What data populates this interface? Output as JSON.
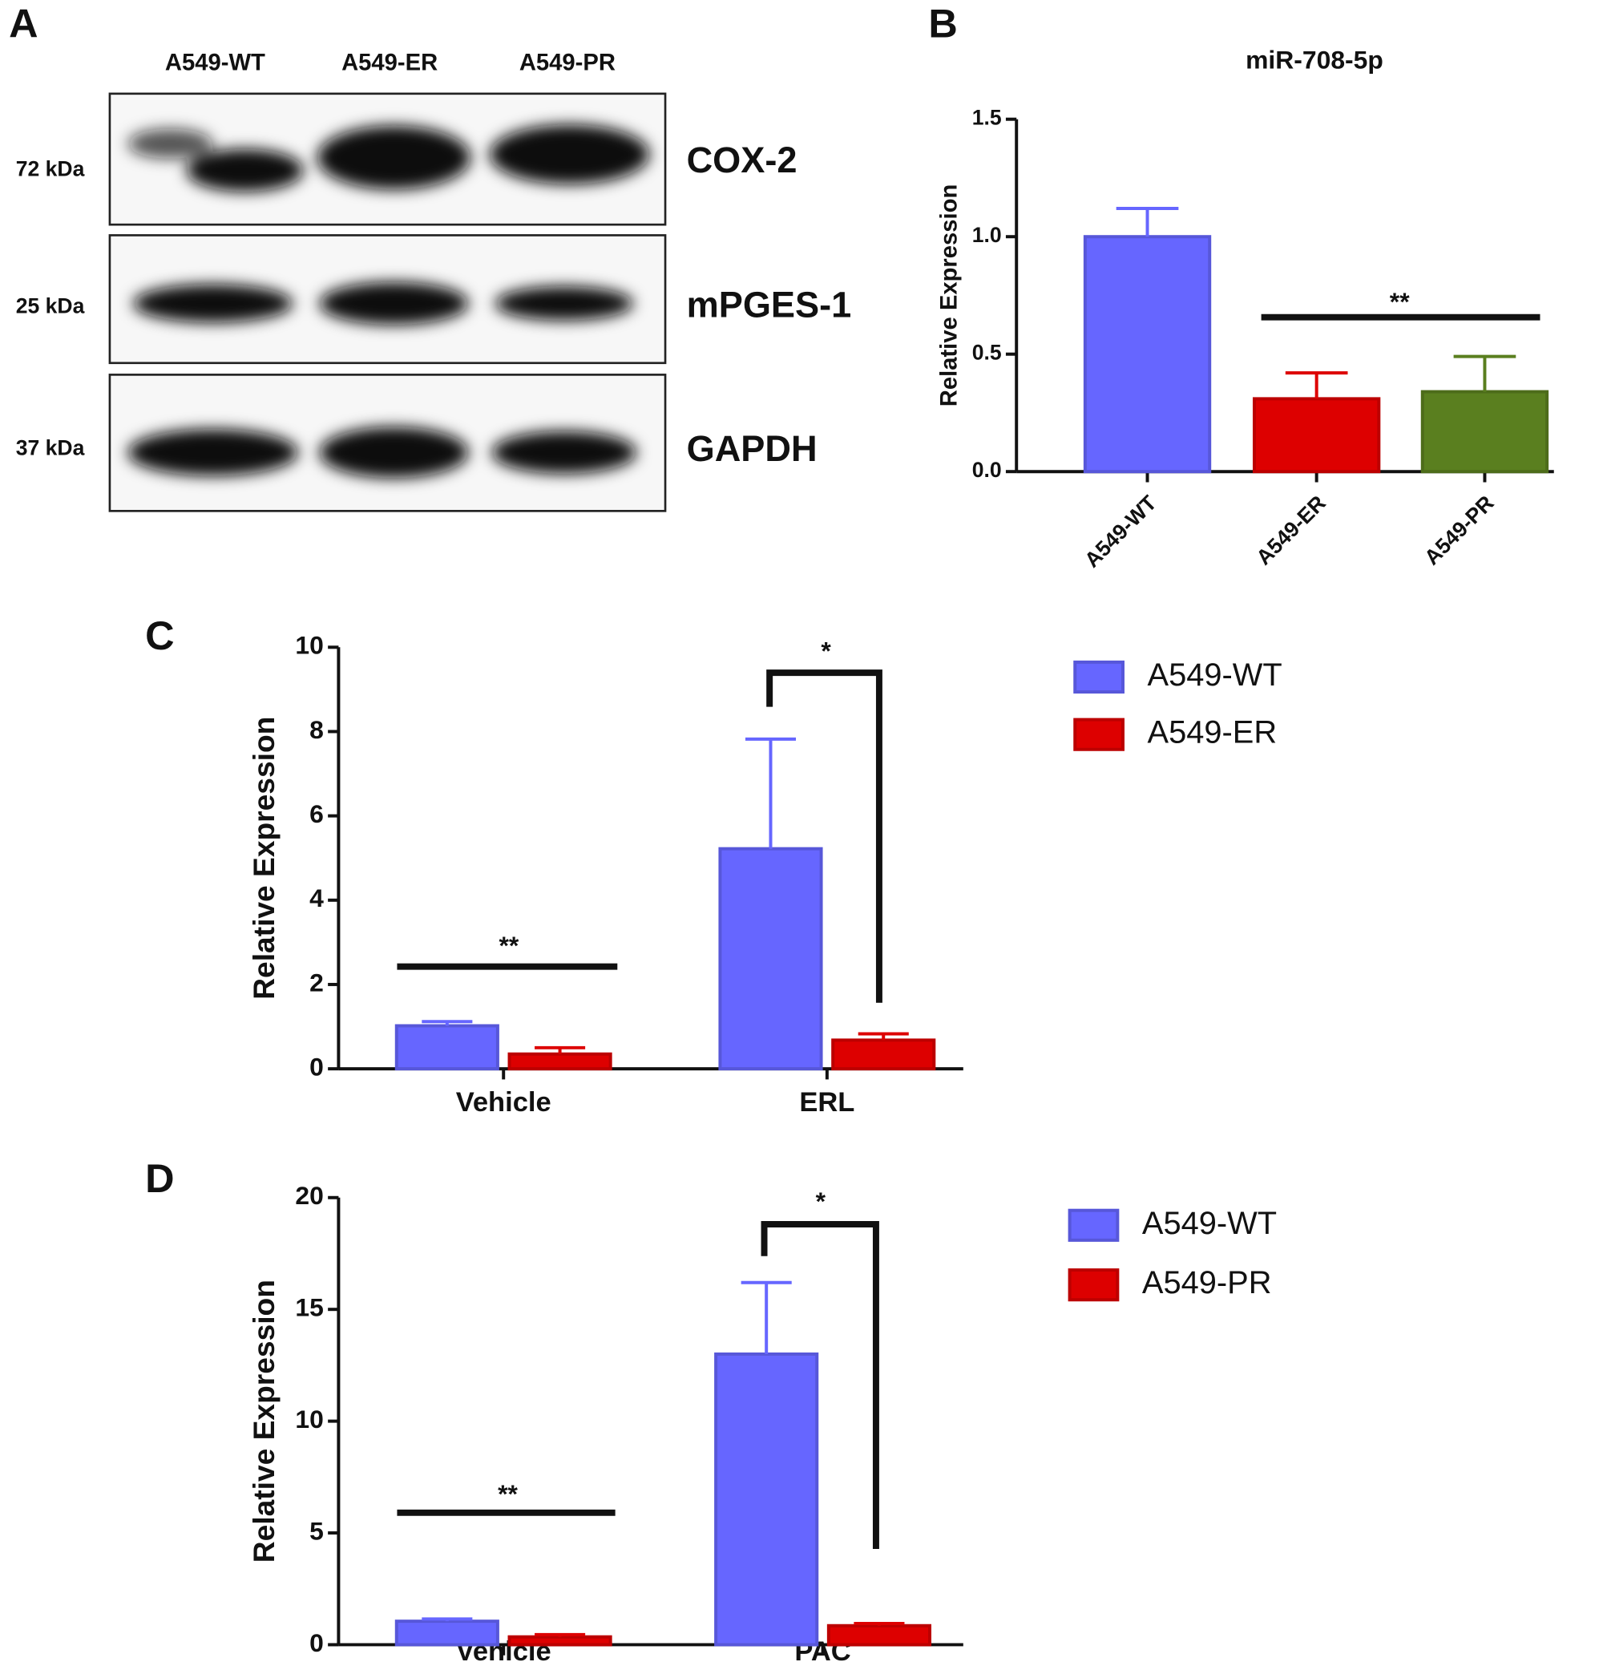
{
  "panel_labels": [
    "A",
    "B",
    "C",
    "D"
  ],
  "blot": {
    "lanes": [
      "A549-WT",
      "A549-ER",
      "A549-PR"
    ],
    "rows": [
      {
        "marker": "72 kDa",
        "protein": "COX-2"
      },
      {
        "marker": "25 kDa",
        "protein": "mPGES-1"
      },
      {
        "marker": "37 kDa",
        "protein": "GAPDH"
      }
    ]
  },
  "chart_data": [
    {
      "type": "bar",
      "title": "miR-708-5p",
      "y_label": "Relative Expression",
      "categories": [
        "A549-WT",
        "A549-ER",
        "A549-PR"
      ],
      "values": [
        1.0,
        0.31,
        0.34
      ],
      "errors": [
        0.12,
        0.11,
        0.15
      ],
      "colors": [
        "#6666ff",
        "#dd0000",
        "#5a7f1f"
      ],
      "ylim": [
        0,
        1.5
      ],
      "yticks": [
        {
          "value": 0,
          "label": "0.0"
        },
        0.5,
        {
          "value": 1,
          "label": "1.0"
        },
        1.5
      ],
      "annotations": [
        "**"
      ]
    },
    {
      "type": "grouped_bar",
      "y_label": "Relative Expression",
      "categories": [
        "Vehicle",
        "ERL"
      ],
      "series": [
        {
          "name": "A549-WT",
          "color": "#6666ff",
          "values": [
            1.02,
            5.22
          ],
          "errors": [
            0.1,
            2.6
          ]
        },
        {
          "name": "A549-ER",
          "color": "#dd0000",
          "values": [
            0.35,
            0.68
          ],
          "errors": [
            0.15,
            0.15
          ]
        }
      ],
      "ylim": [
        0,
        10
      ],
      "yticks": [
        0,
        2,
        4,
        6,
        8,
        10
      ],
      "annotations": [
        "**",
        "*"
      ]
    },
    {
      "type": "grouped_bar",
      "y_label": "Relative Expression",
      "categories": [
        "Vehicle",
        "PAC"
      ],
      "series": [
        {
          "name": "A549-WT",
          "color": "#6666ff",
          "values": [
            1.05,
            13.0
          ],
          "errors": [
            0.1,
            3.2
          ]
        },
        {
          "name": "A549-PR",
          "color": "#dd0000",
          "values": [
            0.35,
            0.85
          ],
          "errors": [
            0.1,
            0.1
          ]
        }
      ],
      "ylim": [
        0,
        20
      ],
      "yticks": [
        0,
        5,
        10,
        15,
        20
      ],
      "annotations": [
        "**",
        "*"
      ]
    }
  ]
}
